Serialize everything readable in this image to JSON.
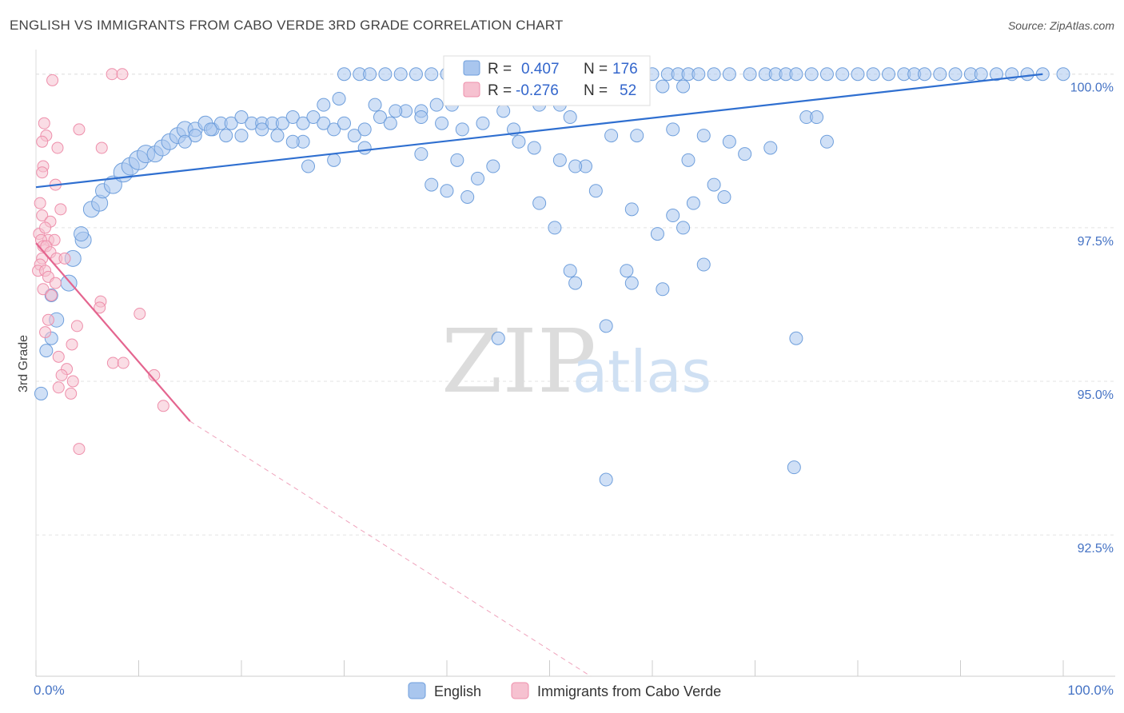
{
  "header": {
    "title": "ENGLISH VS IMMIGRANTS FROM CABO VERDE 3RD GRADE CORRELATION CHART",
    "source": "Source: ZipAtlas.com"
  },
  "watermark": {
    "zip": "ZIP",
    "atlas": "atlas"
  },
  "stats": {
    "english": {
      "r_label": "R =",
      "r_value": "0.407",
      "n_label": "N =",
      "n_value": "176"
    },
    "cabo": {
      "r_label": "R =",
      "r_value": "-0.276",
      "n_label": "N =",
      "n_value": "52"
    }
  },
  "legend": {
    "english": "English",
    "cabo": "Immigrants from Cabo Verde"
  },
  "colors": {
    "english_fill": "#a9c6ee",
    "english_stroke": "#6f9fdc",
    "english_line": "#2f6fd0",
    "cabo_fill": "#f6c1d0",
    "cabo_stroke": "#ee8fab",
    "cabo_line": "#e4658f",
    "grid": "#e3e3e3",
    "axis_text": "#4472c4"
  },
  "chart_data": {
    "type": "scatter",
    "title": "ENGLISH VS IMMIGRANTS FROM CABO VERDE 3RD GRADE CORRELATION CHART",
    "ylabel": "3rd Grade",
    "xlabel": "",
    "xlim": [
      0,
      100
    ],
    "ylim": [
      90.2,
      100.4
    ],
    "x_tick_labels": [
      "0.0%",
      "100.0%"
    ],
    "y_ticks": [
      92.5,
      95.0,
      97.5,
      100.0
    ],
    "y_tick_labels": [
      "92.5%",
      "95.0%",
      "97.5%",
      "100.0%"
    ],
    "grid": true,
    "legend_position": "bottom-center",
    "series": [
      {
        "name": "English",
        "r": 0.407,
        "n": 176,
        "trend": {
          "x": [
            0,
            98
          ],
          "y": [
            98.16,
            100.0
          ]
        },
        "points": [
          [
            0.5,
            94.8,
            8
          ],
          [
            1.0,
            95.5,
            8
          ],
          [
            1.5,
            95.7,
            8
          ],
          [
            2.0,
            96.0,
            9
          ],
          [
            1.5,
            96.4,
            8
          ],
          [
            3.2,
            96.6,
            10
          ],
          [
            3.6,
            97.0,
            10
          ],
          [
            4.6,
            97.3,
            10
          ],
          [
            4.4,
            97.4,
            9
          ],
          [
            5.4,
            97.8,
            10
          ],
          [
            6.2,
            97.9,
            10
          ],
          [
            6.5,
            98.1,
            9
          ],
          [
            7.5,
            98.2,
            11
          ],
          [
            8.5,
            98.4,
            12
          ],
          [
            9.2,
            98.5,
            11
          ],
          [
            10.0,
            98.6,
            12
          ],
          [
            10.7,
            98.7,
            11
          ],
          [
            11.6,
            98.7,
            10
          ],
          [
            12.3,
            98.8,
            10
          ],
          [
            13.0,
            98.9,
            10
          ],
          [
            13.8,
            99.0,
            10
          ],
          [
            14.5,
            99.1,
            10
          ],
          [
            15.5,
            99.1,
            9
          ],
          [
            16.5,
            99.2,
            9
          ],
          [
            17.2,
            99.1,
            8
          ],
          [
            18.0,
            99.2,
            8
          ],
          [
            19.0,
            99.2,
            8
          ],
          [
            20.0,
            99.3,
            8
          ],
          [
            21.0,
            99.2,
            8
          ],
          [
            22.0,
            99.2,
            8
          ],
          [
            23.0,
            99.2,
            8
          ],
          [
            24.0,
            99.2,
            8
          ],
          [
            25.0,
            99.3,
            8
          ],
          [
            26.0,
            99.2,
            8
          ],
          [
            27.0,
            99.3,
            8
          ],
          [
            28.0,
            99.2,
            8
          ],
          [
            29.0,
            99.1,
            8
          ],
          [
            30.0,
            99.2,
            8
          ],
          [
            31.0,
            99.0,
            8
          ],
          [
            32.0,
            99.1,
            8
          ],
          [
            33.5,
            99.3,
            8
          ],
          [
            34.5,
            99.2,
            8
          ],
          [
            36.0,
            99.4,
            8
          ],
          [
            37.5,
            99.4,
            8
          ],
          [
            39.0,
            99.5,
            8
          ],
          [
            40.5,
            99.5,
            8
          ],
          [
            42.0,
            99.6,
            8
          ],
          [
            43.5,
            99.6,
            8
          ],
          [
            45.0,
            99.6,
            8
          ],
          [
            47.0,
            99.6,
            8
          ],
          [
            49.0,
            99.5,
            8
          ],
          [
            51.0,
            99.5,
            8
          ],
          [
            53.0,
            99.6,
            8
          ],
          [
            55.0,
            99.6,
            8
          ],
          [
            57.0,
            99.7,
            8
          ],
          [
            59.0,
            99.8,
            8
          ],
          [
            61.0,
            99.8,
            8
          ],
          [
            63.0,
            99.8,
            8
          ],
          [
            60.0,
            100.0,
            8
          ],
          [
            61.5,
            100.0,
            8
          ],
          [
            62.5,
            100.0,
            8
          ],
          [
            63.5,
            100.0,
            8
          ],
          [
            64.5,
            100.0,
            8
          ],
          [
            66.0,
            100.0,
            8
          ],
          [
            67.5,
            100.0,
            8
          ],
          [
            69.5,
            100.0,
            8
          ],
          [
            71.0,
            100.0,
            8
          ],
          [
            72.0,
            100.0,
            8
          ],
          [
            73.0,
            100.0,
            8
          ],
          [
            74.0,
            100.0,
            8
          ],
          [
            75.5,
            100.0,
            8
          ],
          [
            77.0,
            100.0,
            8
          ],
          [
            78.5,
            100.0,
            8
          ],
          [
            80.0,
            100.0,
            8
          ],
          [
            81.5,
            100.0,
            8
          ],
          [
            83.0,
            100.0,
            8
          ],
          [
            84.5,
            100.0,
            8
          ],
          [
            85.5,
            100.0,
            8
          ],
          [
            86.5,
            100.0,
            8
          ],
          [
            88.0,
            100.0,
            8
          ],
          [
            89.5,
            100.0,
            8
          ],
          [
            91.0,
            100.0,
            8
          ],
          [
            92.0,
            100.0,
            8
          ],
          [
            93.5,
            100.0,
            8
          ],
          [
            95.0,
            100.0,
            8
          ],
          [
            96.5,
            100.0,
            8
          ],
          [
            98.0,
            100.0,
            8
          ],
          [
            100.0,
            100.0,
            8
          ],
          [
            30.0,
            100.0,
            8
          ],
          [
            31.5,
            100.0,
            8
          ],
          [
            32.5,
            100.0,
            8
          ],
          [
            34.0,
            100.0,
            8
          ],
          [
            35.5,
            100.0,
            8
          ],
          [
            37.0,
            100.0,
            8
          ],
          [
            38.5,
            100.0,
            8
          ],
          [
            40.0,
            100.0,
            8
          ],
          [
            41.5,
            100.0,
            8
          ],
          [
            42.5,
            100.0,
            8
          ],
          [
            44.0,
            100.0,
            8
          ],
          [
            45.5,
            100.0,
            8
          ],
          [
            47.0,
            100.0,
            8
          ],
          [
            48.5,
            100.0,
            8
          ],
          [
            50.0,
            100.0,
            8
          ],
          [
            51.5,
            100.0,
            8
          ],
          [
            53.0,
            100.0,
            8
          ],
          [
            54.5,
            100.0,
            8
          ],
          [
            56.0,
            100.0,
            8
          ],
          [
            57.5,
            100.0,
            8
          ],
          [
            59.0,
            100.0,
            8
          ],
          [
            28.0,
            99.5,
            8
          ],
          [
            29.5,
            99.6,
            8
          ],
          [
            33.0,
            99.5,
            8
          ],
          [
            35.0,
            99.4,
            8
          ],
          [
            37.5,
            99.3,
            8
          ],
          [
            39.5,
            99.2,
            8
          ],
          [
            41.5,
            99.1,
            8
          ],
          [
            43.5,
            99.2,
            8
          ],
          [
            45.5,
            99.4,
            8
          ],
          [
            46.5,
            99.1,
            8
          ],
          [
            52.0,
            99.3,
            8
          ],
          [
            56.0,
            99.0,
            8
          ],
          [
            58.5,
            99.0,
            8
          ],
          [
            62.0,
            99.1,
            8
          ],
          [
            65.0,
            99.0,
            8
          ],
          [
            67.5,
            98.9,
            8
          ],
          [
            71.5,
            98.8,
            8
          ],
          [
            75.0,
            99.3,
            8
          ],
          [
            76.0,
            99.3,
            8
          ],
          [
            77.0,
            98.9,
            8
          ],
          [
            69.0,
            98.7,
            8
          ],
          [
            63.5,
            98.6,
            8
          ],
          [
            53.5,
            98.5,
            8
          ],
          [
            48.5,
            98.8,
            8
          ],
          [
            47.0,
            98.9,
            8
          ],
          [
            41.0,
            98.6,
            8
          ],
          [
            37.5,
            98.7,
            8
          ],
          [
            32.0,
            98.8,
            8
          ],
          [
            29.0,
            98.6,
            8
          ],
          [
            26.5,
            98.5,
            8
          ],
          [
            26.0,
            98.9,
            8
          ],
          [
            25.0,
            98.9,
            8
          ],
          [
            23.5,
            99.0,
            8
          ],
          [
            22.0,
            99.1,
            8
          ],
          [
            20.0,
            99.0,
            8
          ],
          [
            18.5,
            99.0,
            8
          ],
          [
            17.0,
            99.1,
            8
          ],
          [
            15.5,
            99.0,
            8
          ],
          [
            14.5,
            98.9,
            8
          ],
          [
            51.0,
            98.6,
            8
          ],
          [
            52.5,
            98.5,
            8
          ],
          [
            54.5,
            98.1,
            8
          ],
          [
            58.0,
            97.8,
            8
          ],
          [
            60.5,
            97.4,
            8
          ],
          [
            63.0,
            97.5,
            8
          ],
          [
            66.0,
            98.2,
            8
          ],
          [
            64.0,
            97.9,
            8
          ],
          [
            49.0,
            97.9,
            8
          ],
          [
            50.5,
            97.5,
            8
          ],
          [
            52.0,
            96.8,
            8
          ],
          [
            52.5,
            96.6,
            8
          ],
          [
            61.0,
            96.5,
            8
          ],
          [
            57.5,
            96.8,
            8
          ],
          [
            58.0,
            96.6,
            8
          ],
          [
            65.0,
            96.9,
            8
          ],
          [
            45.0,
            95.7,
            8
          ],
          [
            55.5,
            95.9,
            8
          ],
          [
            74.0,
            95.7,
            8
          ],
          [
            73.8,
            93.6,
            8
          ],
          [
            55.5,
            93.4,
            8
          ],
          [
            67.0,
            98.0,
            8
          ],
          [
            62.0,
            97.7,
            8
          ],
          [
            44.5,
            98.5,
            8
          ],
          [
            43.0,
            98.3,
            8
          ],
          [
            42.0,
            98.0,
            8
          ],
          [
            40.0,
            98.1,
            8
          ],
          [
            38.5,
            98.2,
            8
          ]
        ]
      },
      {
        "name": "Immigrants from Cabo Verde",
        "r": -0.276,
        "n": 52,
        "trend": {
          "x": [
            0,
            15
          ],
          "y": [
            97.25,
            94.35
          ]
        },
        "trend_extension": {
          "x": [
            15,
            54
          ],
          "y": [
            94.35,
            90.2
          ]
        },
        "points": [
          [
            7.4,
            100.0,
            7
          ],
          [
            8.4,
            100.0,
            7
          ],
          [
            1.6,
            99.9,
            7
          ],
          [
            0.8,
            99.2,
            7
          ],
          [
            1.0,
            99.0,
            7
          ],
          [
            4.2,
            99.1,
            7
          ],
          [
            0.6,
            98.9,
            7
          ],
          [
            2.1,
            98.8,
            7
          ],
          [
            6.4,
            98.8,
            7
          ],
          [
            0.7,
            98.5,
            7
          ],
          [
            0.6,
            98.4,
            7
          ],
          [
            1.9,
            98.2,
            7
          ],
          [
            0.4,
            97.9,
            7
          ],
          [
            2.4,
            97.8,
            7
          ],
          [
            0.6,
            97.7,
            7
          ],
          [
            1.4,
            97.6,
            7
          ],
          [
            0.3,
            97.4,
            7
          ],
          [
            0.9,
            97.5,
            7
          ],
          [
            1.2,
            97.3,
            7
          ],
          [
            1.8,
            97.3,
            7
          ],
          [
            0.5,
            97.3,
            7
          ],
          [
            0.7,
            97.2,
            7
          ],
          [
            1.0,
            97.2,
            7
          ],
          [
            1.4,
            97.1,
            7
          ],
          [
            0.6,
            97.0,
            7
          ],
          [
            2.0,
            97.0,
            7
          ],
          [
            2.8,
            97.0,
            7
          ],
          [
            0.4,
            96.9,
            7
          ],
          [
            0.2,
            96.8,
            7
          ],
          [
            0.9,
            96.8,
            7
          ],
          [
            1.2,
            96.7,
            7
          ],
          [
            1.9,
            96.6,
            7
          ],
          [
            0.7,
            96.5,
            7
          ],
          [
            1.5,
            96.4,
            7
          ],
          [
            6.3,
            96.3,
            7
          ],
          [
            6.2,
            96.2,
            7
          ],
          [
            10.1,
            96.1,
            7
          ],
          [
            1.2,
            96.0,
            7
          ],
          [
            4.0,
            95.9,
            7
          ],
          [
            0.9,
            95.8,
            7
          ],
          [
            3.5,
            95.6,
            7
          ],
          [
            2.2,
            95.4,
            7
          ],
          [
            7.5,
            95.3,
            7
          ],
          [
            8.5,
            95.3,
            7
          ],
          [
            3.0,
            95.2,
            7
          ],
          [
            11.5,
            95.1,
            7
          ],
          [
            2.5,
            95.1,
            7
          ],
          [
            3.6,
            95.0,
            7
          ],
          [
            2.2,
            94.9,
            7
          ],
          [
            3.4,
            94.8,
            7
          ],
          [
            12.4,
            94.6,
            7
          ],
          [
            4.2,
            93.9,
            7
          ]
        ]
      }
    ]
  }
}
